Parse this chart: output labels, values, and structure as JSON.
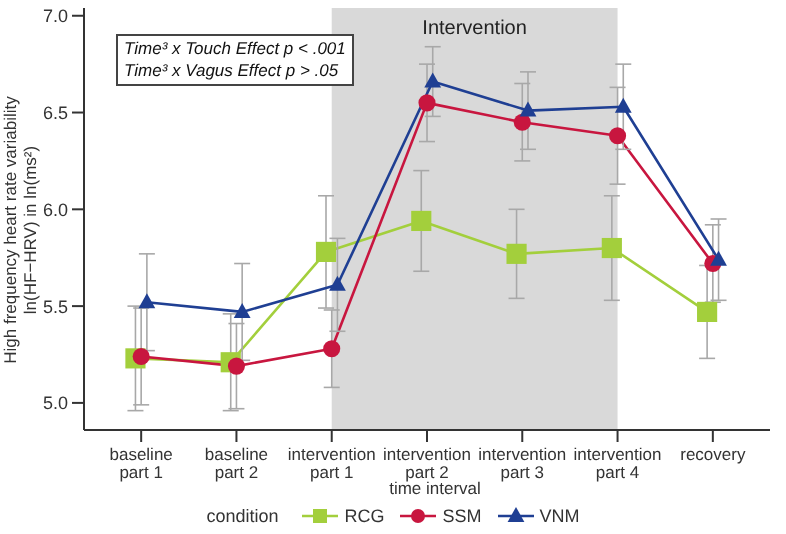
{
  "chart_data": {
    "type": "line",
    "xlabel": "time interval",
    "ylabel": "High frequency heart rate variability\nln(HF−HRV) in ln(ms²)",
    "legend_title": "condition",
    "legend": "bottom",
    "grid": false,
    "categories": [
      "baseline part 1",
      "baseline part 2",
      "intervention part 1",
      "intervention part 2",
      "intervention part 3",
      "intervention part 4",
      "recovery"
    ],
    "ylim": [
      4.86,
      7.04
    ],
    "yticks": [
      {
        "value": 5,
        "label": "5.0"
      },
      {
        "value": 5.5,
        "label": "5.5"
      },
      {
        "value": 6,
        "label": "6.0"
      },
      {
        "value": 6.5,
        "label": "6.5"
      },
      {
        "value": 7,
        "label": "7.0"
      }
    ],
    "series": [
      {
        "name": "RCG",
        "color": "#a3cf3c",
        "marker": "square",
        "values": [
          5.23,
          5.21,
          5.78,
          5.94,
          5.77,
          5.8,
          5.47
        ],
        "errors": [
          0.27,
          0.25,
          0.29,
          0.26,
          0.23,
          0.27,
          0.24
        ]
      },
      {
        "name": "SSM",
        "color": "#c8163f",
        "marker": "circle",
        "values": [
          5.24,
          5.19,
          5.28,
          6.55,
          6.45,
          6.38,
          5.72
        ],
        "errors": [
          0.25,
          0.22,
          0.2,
          0.2,
          0.2,
          0.25,
          0.2
        ]
      },
      {
        "name": "VNM",
        "color": "#1f3f93",
        "marker": "triangle",
        "values": [
          5.52,
          5.47,
          5.61,
          6.66,
          6.51,
          6.53,
          5.74
        ],
        "errors": [
          0.25,
          0.25,
          0.24,
          0.18,
          0.2,
          0.22,
          0.21
        ]
      }
    ],
    "bands": [
      {
        "axis": "x",
        "from": "intervention part 1",
        "to": "intervention part 4",
        "label": "Intervention",
        "color": "#d9d9d9"
      }
    ],
    "annotations": [
      "Time³ x Touch Effect p < .001",
      "Time³ x Vagus Effect p > .05"
    ]
  }
}
